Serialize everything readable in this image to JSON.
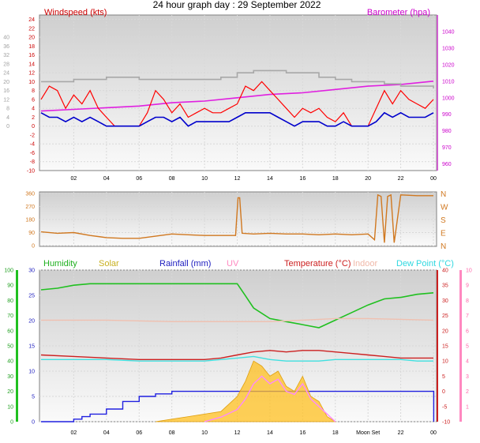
{
  "chart_data": [
    {
      "type": "line",
      "title": "24 hour graph day : 29 September 2022",
      "x_ticks": [
        "02",
        "04",
        "06",
        "08",
        "10",
        "12",
        "14",
        "16",
        "18",
        "20",
        "22",
        "00"
      ],
      "left_axis": {
        "label": "Windspeed (kts)",
        "ylim": [
          -10,
          25
        ],
        "ticks": [
          -10,
          -8,
          -6,
          -4,
          -2,
          0,
          2,
          4,
          6,
          8,
          10,
          12,
          14,
          16,
          18,
          20,
          22,
          24
        ]
      },
      "right_axis": {
        "label": "Barometer (hpa)",
        "ylim": [
          956,
          1050
        ],
        "ticks": [
          960,
          970,
          980,
          990,
          1000,
          1010,
          1020,
          1030,
          1040
        ]
      },
      "series": [
        {
          "name": "Barometer (hpa)",
          "color": "#e020e0",
          "axis": "right",
          "x": [
            0,
            2,
            4,
            6,
            8,
            10,
            12,
            14,
            16,
            18,
            20,
            22,
            24
          ],
          "values": [
            992,
            993,
            994,
            995,
            997,
            998,
            1000,
            1002,
            1003,
            1005,
            1007,
            1008,
            1010
          ]
        },
        {
          "color": "#a8a8a8",
          "axis": "left",
          "x": [
            0,
            2,
            4,
            6,
            8,
            10,
            11,
            12,
            13,
            14,
            15,
            16,
            17,
            18,
            19,
            20,
            21,
            22,
            23,
            24
          ],
          "values": [
            10,
            10.5,
            11,
            10.5,
            10.5,
            10.5,
            11,
            12,
            12.5,
            12.5,
            12,
            12,
            11,
            10.5,
            10,
            10,
            9.5,
            9,
            9,
            8.5
          ]
        },
        {
          "color": "#ff0000",
          "axis": "left",
          "x": [
            0,
            0.5,
            1,
            1.5,
            2,
            2.5,
            3,
            3.5,
            4,
            4.5,
            5,
            5.5,
            6,
            6.5,
            7,
            7.5,
            8,
            8.5,
            9,
            9.5,
            10,
            10.5,
            11,
            11.5,
            12,
            12.5,
            13,
            13.5,
            14,
            14.5,
            15,
            15.5,
            16,
            16.5,
            17,
            17.5,
            18,
            18.5,
            19,
            19.5,
            20,
            20.5,
            21,
            21.5,
            22,
            22.5,
            23,
            23.5,
            24
          ],
          "values": [
            6,
            9,
            8,
            4,
            7,
            5,
            8,
            4,
            2,
            0,
            0,
            0,
            0,
            3,
            8,
            6,
            3,
            5,
            2,
            3,
            4,
            3,
            3,
            4,
            5,
            9,
            8,
            10,
            8,
            6,
            4,
            2,
            4,
            3,
            4,
            2,
            1,
            3,
            0,
            0,
            0,
            4,
            8,
            5,
            8,
            6,
            5,
            4,
            6
          ]
        },
        {
          "color": "#0000cc",
          "axis": "left",
          "x": [
            0,
            0.5,
            1,
            1.5,
            2,
            2.5,
            3,
            3.5,
            4,
            4.5,
            5,
            5.5,
            6,
            6.5,
            7,
            7.5,
            8,
            8.5,
            9,
            9.5,
            10,
            10.5,
            11,
            11.5,
            12,
            12.5,
            13,
            13.5,
            14,
            14.5,
            15,
            15.5,
            16,
            16.5,
            17,
            17.5,
            18,
            18.5,
            19,
            19.5,
            20,
            20.5,
            21,
            21.5,
            22,
            22.5,
            23,
            23.5,
            24
          ],
          "values": [
            3,
            2,
            2,
            1,
            2,
            1,
            2,
            1,
            0,
            0,
            0,
            0,
            0,
            1,
            2,
            2,
            1,
            2,
            0,
            1,
            1,
            1,
            1,
            1,
            2,
            3,
            3,
            3,
            3,
            2,
            1,
            0,
            1,
            1,
            1,
            0,
            0,
            1,
            0,
            0,
            0,
            1,
            3,
            2,
            3,
            2,
            2,
            2,
            3
          ]
        }
      ]
    },
    {
      "type": "line",
      "y_ticks": [
        0,
        90,
        180,
        270,
        360
      ],
      "ylim": [
        0,
        360
      ],
      "direction_labels": [
        "N",
        "W",
        "S",
        "E",
        "N"
      ],
      "series": [
        {
          "color": "#d07820",
          "x": [
            0,
            1,
            2,
            3,
            4,
            5,
            6,
            7,
            8,
            9,
            10,
            11,
            11.9,
            12.05,
            12.15,
            12.3,
            13,
            14,
            15,
            16,
            17,
            18,
            19,
            20,
            20.4,
            20.6,
            20.8,
            21.0,
            21.2,
            21.4,
            21.6,
            22,
            23,
            24
          ],
          "values": [
            95,
            85,
            90,
            70,
            55,
            50,
            50,
            65,
            80,
            75,
            70,
            70,
            70,
            330,
            330,
            85,
            80,
            85,
            80,
            80,
            75,
            80,
            75,
            80,
            40,
            350,
            340,
            20,
            340,
            350,
            20,
            350,
            345,
            345
          ]
        }
      ]
    },
    {
      "type": "line",
      "legend": [
        "Humidity",
        "Solar",
        "Rainfall (mm)",
        "UV",
        "Temperature (°C)",
        "Indoor",
        "Dew Point (°C)"
      ],
      "humidity_axis": {
        "ylim": [
          0,
          100
        ],
        "ticks": [
          0,
          10,
          20,
          30,
          40,
          50,
          60,
          70,
          80,
          90,
          100
        ]
      },
      "rain_axis": {
        "ylim": [
          0,
          30
        ],
        "ticks": [
          0,
          5,
          10,
          15,
          20,
          25,
          30
        ]
      },
      "temp_axis": {
        "ylim": [
          -10,
          40
        ],
        "ticks": [
          -10,
          -5,
          0,
          5,
          10,
          15,
          20,
          25,
          30,
          35,
          40
        ]
      },
      "uv_axis": {
        "ylim": [
          0,
          10
        ],
        "ticks": [
          1,
          2,
          3,
          4,
          5,
          6,
          7,
          8,
          9,
          10
        ]
      },
      "x_ticks": [
        "02",
        "04",
        "06",
        "08",
        "10",
        "12",
        "14",
        "16",
        "18",
        "Moon Set",
        "22",
        "00"
      ],
      "series": [
        {
          "name": "Humidity",
          "color": "#20c020",
          "axis": "humidity",
          "x": [
            0,
            1,
            2,
            3,
            4,
            5,
            6,
            7,
            8,
            9,
            10,
            11,
            12,
            12.5,
            13,
            14,
            15,
            16,
            17,
            18,
            19,
            20,
            21,
            22,
            23,
            24
          ],
          "values": [
            87,
            88,
            90,
            91,
            91,
            91,
            91,
            91,
            91,
            91,
            91,
            91,
            91,
            83,
            75,
            68,
            66,
            64,
            62,
            67,
            72,
            77,
            81,
            82,
            84,
            85
          ]
        },
        {
          "name": "Indoor",
          "color": "#f0c0b0",
          "axis": "temp",
          "x": [
            0,
            4,
            8,
            12,
            14,
            16,
            18,
            20,
            24
          ],
          "values": [
            23.5,
            23.5,
            23,
            23,
            23,
            23.5,
            24,
            24,
            23.5
          ]
        },
        {
          "name": "Temperature (°C)",
          "color": "#cc2020",
          "axis": "temp",
          "x": [
            0,
            2,
            4,
            6,
            8,
            10,
            11,
            12,
            13,
            14,
            15,
            16,
            17,
            18,
            19,
            20,
            21,
            22,
            23,
            24
          ],
          "values": [
            12,
            11.5,
            11,
            10.5,
            10.5,
            10.5,
            11,
            12,
            13,
            13.5,
            13,
            13.5,
            13.5,
            13,
            12.5,
            12,
            11.5,
            11,
            11,
            11
          ]
        },
        {
          "name": "Dew Point (°C)",
          "color": "#40e0e0",
          "axis": "temp",
          "x": [
            0,
            2,
            4,
            6,
            8,
            10,
            11,
            12,
            13,
            14,
            15,
            16,
            17,
            18,
            19,
            20,
            21,
            22,
            23,
            24
          ],
          "values": [
            10.5,
            10.5,
            10.5,
            10,
            10,
            10,
            10.5,
            11,
            11.5,
            10.5,
            10,
            10,
            10,
            10.5,
            10.5,
            10.5,
            10.5,
            10.5,
            10,
            10
          ]
        },
        {
          "name": "Rainfall (mm)",
          "color": "#2020e0",
          "axis": "rain",
          "x": [
            0,
            1,
            2,
            2.5,
            3,
            4,
            5,
            6,
            7,
            8,
            9,
            11,
            12,
            24,
            24.02
          ],
          "values": [
            0,
            0,
            0.5,
            1,
            1.5,
            2.5,
            4,
            5,
            5.5,
            6,
            6,
            6,
            6,
            6,
            0
          ]
        },
        {
          "name": "Solar",
          "color": "#ffc020",
          "axis": "rain",
          "x": [
            7,
            8,
            9,
            10,
            11,
            12,
            12.5,
            13,
            13.5,
            14,
            14.5,
            15,
            15.5,
            16,
            16.5,
            17,
            17.5,
            18
          ],
          "values": [
            0,
            0.5,
            1,
            1.5,
            2,
            5,
            8,
            12,
            11,
            9,
            10,
            7,
            6,
            9,
            5,
            4,
            1,
            0
          ]
        },
        {
          "name": "UV",
          "color": "#ff88ff",
          "axis": "uv",
          "x": [
            10,
            11,
            12,
            12.5,
            13,
            13.5,
            14,
            14.5,
            15,
            15.5,
            16,
            16.5,
            17,
            17.5,
            18
          ],
          "values": [
            0,
            0.3,
            0.8,
            1.5,
            2.5,
            3,
            2.5,
            2.8,
            2,
            1.8,
            2.5,
            1.5,
            1,
            0.5,
            0
          ]
        }
      ]
    }
  ]
}
